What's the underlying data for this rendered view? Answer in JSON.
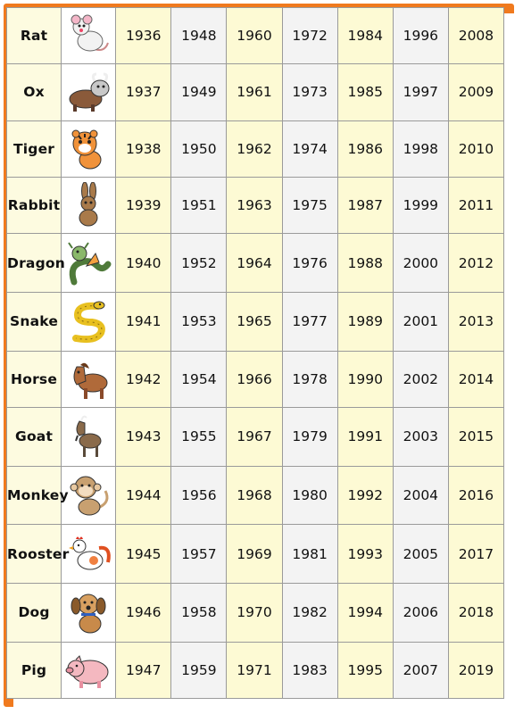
{
  "columns": 7,
  "colors": {
    "frame": "#f07a1e",
    "grid": "#9a9a9a",
    "cream": "#fdfad4",
    "grey": "#f3f3f3"
  },
  "rows": [
    {
      "animal": "Rat",
      "icon": "rat-icon",
      "years": [
        "1936",
        "1948",
        "1960",
        "1972",
        "1984",
        "1996",
        "2008"
      ]
    },
    {
      "animal": "Ox",
      "icon": "ox-icon",
      "years": [
        "1937",
        "1949",
        "1961",
        "1973",
        "1985",
        "1997",
        "2009"
      ]
    },
    {
      "animal": "Tiger",
      "icon": "tiger-icon",
      "years": [
        "1938",
        "1950",
        "1962",
        "1974",
        "1986",
        "1998",
        "2010"
      ]
    },
    {
      "animal": "Rabbit",
      "icon": "rabbit-icon",
      "years": [
        "1939",
        "1951",
        "1963",
        "1975",
        "1987",
        "1999",
        "2011"
      ]
    },
    {
      "animal": "Dragon",
      "icon": "dragon-icon",
      "years": [
        "1940",
        "1952",
        "1964",
        "1976",
        "1988",
        "2000",
        "2012"
      ]
    },
    {
      "animal": "Snake",
      "icon": "snake-icon",
      "years": [
        "1941",
        "1953",
        "1965",
        "1977",
        "1989",
        "2001",
        "2013"
      ]
    },
    {
      "animal": "Horse",
      "icon": "horse-icon",
      "years": [
        "1942",
        "1954",
        "1966",
        "1978",
        "1990",
        "2002",
        "2014"
      ]
    },
    {
      "animal": "Goat",
      "icon": "goat-icon",
      "years": [
        "1943",
        "1955",
        "1967",
        "1979",
        "1991",
        "2003",
        "2015"
      ]
    },
    {
      "animal": "Monkey",
      "icon": "monkey-icon",
      "years": [
        "1944",
        "1956",
        "1968",
        "1980",
        "1992",
        "2004",
        "2016"
      ]
    },
    {
      "animal": "Rooster",
      "icon": "rooster-icon",
      "years": [
        "1945",
        "1957",
        "1969",
        "1981",
        "1993",
        "2005",
        "2017"
      ]
    },
    {
      "animal": "Dog",
      "icon": "dog-icon",
      "years": [
        "1946",
        "1958",
        "1970",
        "1982",
        "1994",
        "2006",
        "2018"
      ]
    },
    {
      "animal": "Pig",
      "icon": "pig-icon",
      "years": [
        "1947",
        "1959",
        "1971",
        "1983",
        "1995",
        "2007",
        "2019"
      ]
    }
  ]
}
